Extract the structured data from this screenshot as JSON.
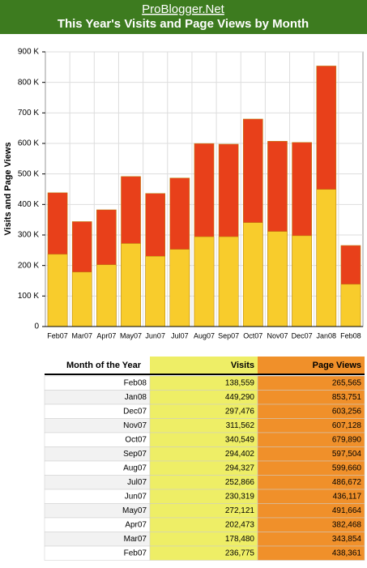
{
  "header": {
    "site": "ProBlogger.Net",
    "title": "This Year's Visits and Page Views by Month"
  },
  "chart_data": {
    "type": "bar",
    "overlap": true,
    "ylabel": "Visits and Page Views",
    "categories": [
      "Feb07",
      "Mar07",
      "Apr07",
      "May07",
      "Jun07",
      "Jul07",
      "Aug07",
      "Sep07",
      "Oct07",
      "Nov07",
      "Dec07",
      "Jan08",
      "Feb08"
    ],
    "series": [
      {
        "name": "Page Views",
        "color": "#e8401a",
        "values": [
          438361,
          343854,
          382468,
          491664,
          436117,
          486672,
          599660,
          597504,
          679890,
          607128,
          603256,
          853751,
          265565
        ]
      },
      {
        "name": "Visits",
        "color": "#f8cc2c",
        "values": [
          236775,
          178480,
          202473,
          272121,
          230319,
          252866,
          294327,
          294402,
          340549,
          311562,
          297476,
          449290,
          138559
        ]
      }
    ],
    "ylim": [
      0,
      900000
    ],
    "yticks": [
      0,
      {
        "value": 100000,
        "label": "100 K"
      },
      {
        "value": 200000,
        "label": "200 K"
      },
      {
        "value": 300000,
        "label": "300 K"
      },
      {
        "value": 400000,
        "label": "400 K"
      },
      {
        "value": 500000,
        "label": "500 K"
      },
      {
        "value": 600000,
        "label": "600 K"
      },
      {
        "value": 700000,
        "label": "700 K"
      },
      {
        "value": 800000,
        "label": "800 K"
      },
      {
        "value": 900000,
        "label": "900 K"
      }
    ],
    "grid": true
  },
  "table": {
    "columns": [
      "Month of the Year",
      "Visits",
      "Page Views"
    ],
    "rows": [
      [
        "Feb08",
        "138,559",
        "265,565"
      ],
      [
        "Jan08",
        "449,290",
        "853,751"
      ],
      [
        "Dec07",
        "297,476",
        "603,256"
      ],
      [
        "Nov07",
        "311,562",
        "607,128"
      ],
      [
        "Oct07",
        "340,549",
        "679,890"
      ],
      [
        "Sep07",
        "294,402",
        "597,504"
      ],
      [
        "Aug07",
        "294,327",
        "599,660"
      ],
      [
        "Jul07",
        "252,866",
        "486,672"
      ],
      [
        "Jun07",
        "230,319",
        "436,117"
      ],
      [
        "May07",
        "272,121",
        "491,664"
      ],
      [
        "Apr07",
        "202,473",
        "382,468"
      ],
      [
        "Mar07",
        "178,480",
        "343,854"
      ],
      [
        "Feb07",
        "236,775",
        "438,361"
      ]
    ]
  }
}
